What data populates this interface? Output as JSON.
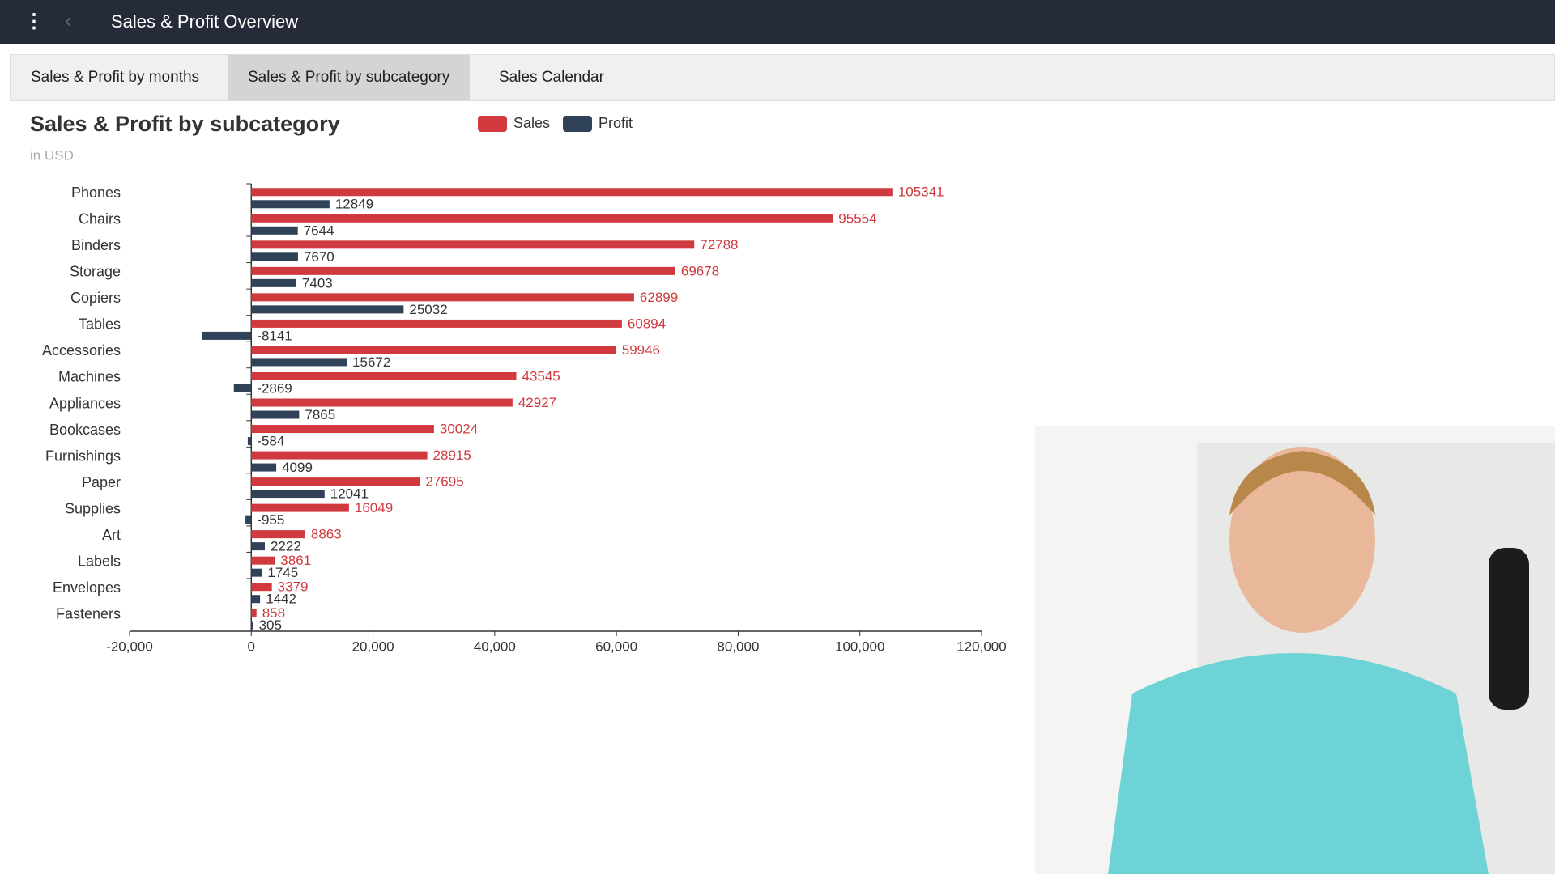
{
  "header": {
    "title": "Sales & Profit Overview"
  },
  "tabs": [
    "Sales & Profit by months",
    "Sales & Profit by subcategory",
    "Sales Calendar"
  ],
  "chart_data": {
    "type": "bar",
    "orientation": "horizontal",
    "title": "Sales & Profit by subcategory",
    "subtitle": "in USD",
    "categories": [
      "Phones",
      "Chairs",
      "Binders",
      "Storage",
      "Copiers",
      "Tables",
      "Accessories",
      "Machines",
      "Appliances",
      "Bookcases",
      "Furnishings",
      "Paper",
      "Supplies",
      "Art",
      "Labels",
      "Envelopes",
      "Fasteners"
    ],
    "series": [
      {
        "name": "Sales",
        "color": "#d03a3f",
        "values": [
          105341,
          95554,
          72788,
          69678,
          62899,
          60894,
          59946,
          43545,
          42927,
          30024,
          28915,
          27695,
          16049,
          8863,
          3861,
          3379,
          858
        ]
      },
      {
        "name": "Profit",
        "color": "#2f4257",
        "values": [
          12849,
          7644,
          7670,
          7403,
          25032,
          -8141,
          15672,
          -2869,
          7865,
          -584,
          4099,
          12041,
          -955,
          2222,
          1745,
          1442,
          305
        ]
      }
    ],
    "xlim": [
      -20000,
      120000
    ],
    "xticks": [
      {
        "value": -20000,
        "label": "-20,000"
      },
      0,
      {
        "value": 20000,
        "label": "20,000"
      },
      {
        "value": 40000,
        "label": "40,000"
      },
      {
        "value": 60000,
        "label": "60,000"
      },
      {
        "value": 80000,
        "label": "80,000"
      },
      {
        "value": 100000,
        "label": "100,000"
      },
      {
        "value": 120000,
        "label": "120,000"
      }
    ],
    "legend": "top"
  }
}
